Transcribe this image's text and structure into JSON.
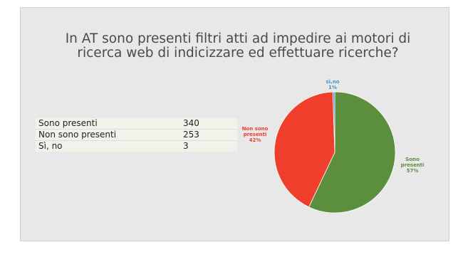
{
  "slide": {
    "title": "In AT sono presenti filtri atti ad impedire ai motori di ricerca web di indicizzare ed effettuare ricerche?"
  },
  "table": {
    "rows": [
      {
        "label": "Sono presenti",
        "value": "340"
      },
      {
        "label": "Non sono presenti",
        "value": "253"
      },
      {
        "label": "Sì, no",
        "value": "3"
      }
    ]
  },
  "chart_data": {
    "type": "pie",
    "categories": [
      "Sono presenti",
      "Non sono presenti",
      "sì,no"
    ],
    "values": [
      340,
      253,
      3
    ],
    "labels": [
      {
        "name": "Sono presenti",
        "pct": "57%",
        "color": "#5b8f3e"
      },
      {
        "name": "Non sono presenti",
        "pct": "42%",
        "color": "#ef3e2c"
      },
      {
        "name": "sì,no",
        "pct": "1%",
        "color": "#4a90c8"
      }
    ]
  }
}
